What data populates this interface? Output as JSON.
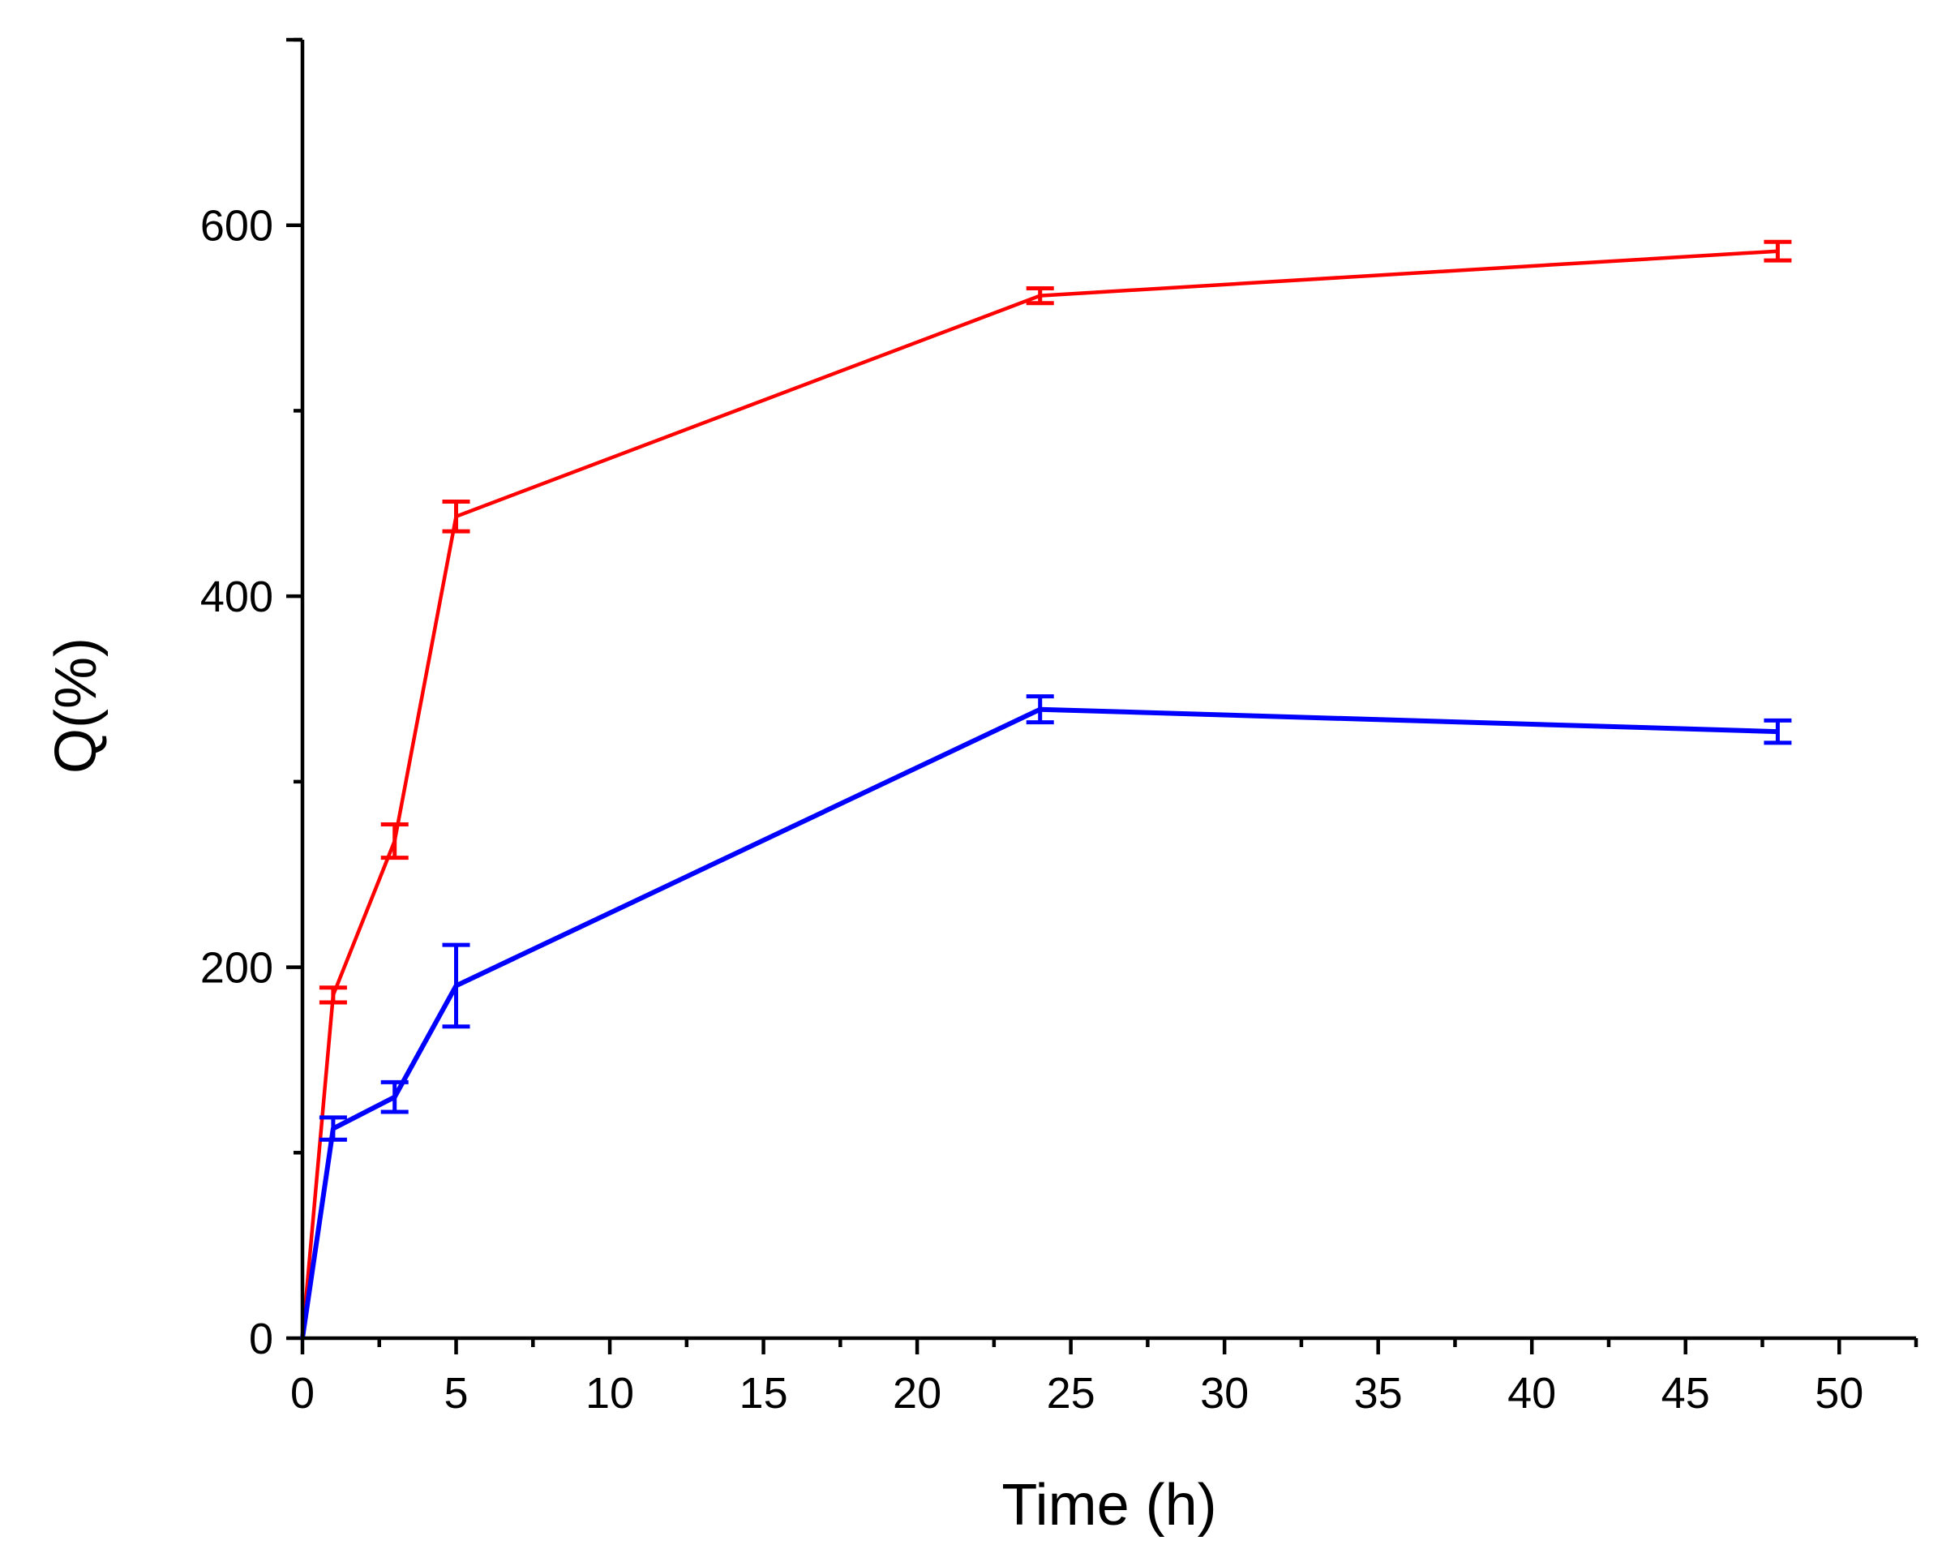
{
  "chart_data": {
    "type": "line",
    "title": "",
    "xlabel": "Time (h)",
    "ylabel": "Q(%)",
    "xlim": [
      0,
      52.5
    ],
    "ylim": [
      0,
      700
    ],
    "xticks": [
      0,
      5,
      10,
      15,
      20,
      25,
      30,
      35,
      40,
      45,
      50
    ],
    "xtick_labels": [
      "0",
      "5",
      "10",
      "15",
      "20",
      "25",
      "30",
      "35",
      "40",
      "45",
      "50"
    ],
    "yticks": [
      0,
      200,
      400,
      600
    ],
    "ytick_labels": [
      "0",
      "200",
      "400",
      "600"
    ],
    "y_minor_ticks": [
      100,
      300,
      500,
      700
    ],
    "x_minor_step": 2.5,
    "grid": false,
    "legend": "none",
    "series": [
      {
        "name": "red series",
        "color": "#ff0000",
        "x": [
          0,
          1,
          3,
          5,
          24,
          48
        ],
        "y": [
          0,
          185,
          268,
          443,
          562,
          586
        ],
        "err": [
          null,
          4,
          9,
          8,
          4,
          5
        ]
      },
      {
        "name": "blue series",
        "color": "#0000ff",
        "x": [
          0,
          1,
          3,
          5,
          24,
          48
        ],
        "y": [
          0,
          113,
          130,
          190,
          339,
          327
        ],
        "err": [
          null,
          6,
          8,
          22,
          7,
          6
        ]
      }
    ]
  }
}
